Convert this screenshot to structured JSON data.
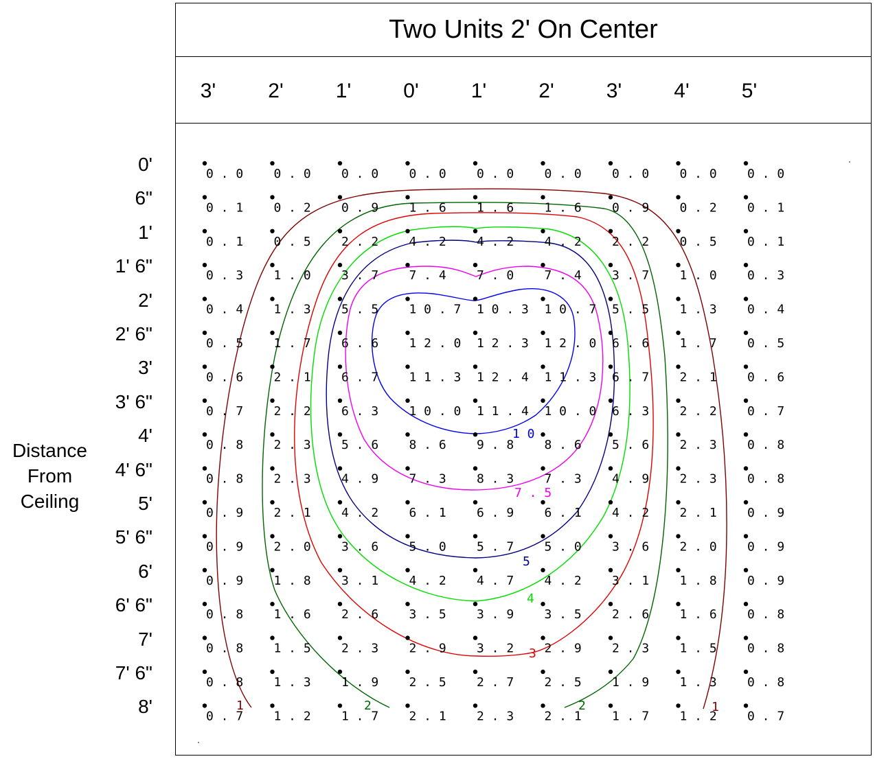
{
  "chart_data": {
    "type": "heatmap",
    "title": "Two Units 2' On Center",
    "ylabel": [
      "Distance",
      "From",
      "Ceiling"
    ],
    "x_ticks": [
      "3'",
      "2'",
      "1'",
      "0'",
      "1'",
      "2'",
      "3'",
      "4'",
      "5'"
    ],
    "y_ticks": [
      "0'",
      "6\"",
      "1'",
      "1' 6\"",
      "2'",
      "2' 6\"",
      "3'",
      "3' 6\"",
      "4'",
      "4' 6\"",
      "5'",
      "5' 6\"",
      "6'",
      "6' 6\"",
      "7'",
      "7' 6\"",
      "8'"
    ],
    "values": [
      [
        "0.0",
        "0.0",
        "0.0",
        "0.0",
        "0.0",
        "0.0",
        "0.0",
        "0.0",
        "0.0"
      ],
      [
        "0.1",
        "0.2",
        "0.9",
        "1.6",
        "1.6",
        "1.6",
        "0.9",
        "0.2",
        "0.1"
      ],
      [
        "0.1",
        "0.5",
        "2.2",
        "4.2",
        "4.2",
        "4.2",
        "2.2",
        "0.5",
        "0.1"
      ],
      [
        "0.3",
        "1.0",
        "3.7",
        "7.4",
        "7.0",
        "7.4",
        "3.7",
        "1.0",
        "0.3"
      ],
      [
        "0.4",
        "1.3",
        "5.5",
        "10.7",
        "10.3",
        "10.7",
        "5.5",
        "1.3",
        "0.4"
      ],
      [
        "0.5",
        "1.7",
        "6.6",
        "12.0",
        "12.3",
        "12.0",
        "6.6",
        "1.7",
        "0.5"
      ],
      [
        "0.6",
        "2.1",
        "6.7",
        "11.3",
        "12.4",
        "11.3",
        "6.7",
        "2.1",
        "0.6"
      ],
      [
        "0.7",
        "2.2",
        "6.3",
        "10.0",
        "11.4",
        "10.0",
        "6.3",
        "2.2",
        "0.7"
      ],
      [
        "0.8",
        "2.3",
        "5.6",
        "8.6",
        "9.8",
        "8.6",
        "5.6",
        "2.3",
        "0.8"
      ],
      [
        "0.8",
        "2.3",
        "4.9",
        "7.3",
        "8.3",
        "7.3",
        "4.9",
        "2.3",
        "0.8"
      ],
      [
        "0.9",
        "2.1",
        "4.2",
        "6.1",
        "6.9",
        "6.1",
        "4.2",
        "2.1",
        "0.9"
      ],
      [
        "0.9",
        "2.0",
        "3.6",
        "5.0",
        "5.7",
        "5.0",
        "3.6",
        "2.0",
        "0.9"
      ],
      [
        "0.9",
        "1.8",
        "3.1",
        "4.2",
        "4.7",
        "4.2",
        "3.1",
        "1.8",
        "0.9"
      ],
      [
        "0.8",
        "1.6",
        "2.6",
        "3.5",
        "3.9",
        "3.5",
        "2.6",
        "1.6",
        "0.8"
      ],
      [
        "0.8",
        "1.5",
        "2.3",
        "2.9",
        "3.2",
        "2.9",
        "2.3",
        "1.5",
        "0.8"
      ],
      [
        "0.8",
        "1.3",
        "1.9",
        "2.5",
        "2.7",
        "2.5",
        "1.9",
        "1.3",
        "0.8"
      ],
      [
        "0.7",
        "1.2",
        "1.7",
        "2.1",
        "2.3",
        "2.1",
        "1.7",
        "1.2",
        "0.7"
      ]
    ],
    "contours": [
      {
        "level": "1",
        "color": "#800000"
      },
      {
        "level": "2",
        "color": "#006400"
      },
      {
        "level": "3",
        "color": "#e00000"
      },
      {
        "level": "4",
        "color": "#00dd00"
      },
      {
        "level": "5",
        "color": "#000080"
      },
      {
        "level": "7.5",
        "color": "#ee00ee"
      },
      {
        "level": "10",
        "color": "#0000ee"
      }
    ]
  }
}
